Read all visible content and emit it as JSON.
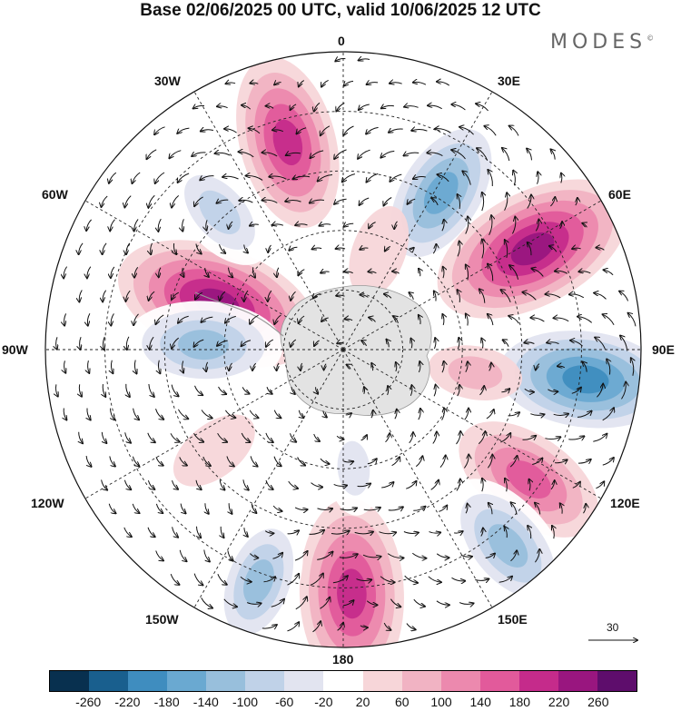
{
  "title": "Base 02/06/2025 00 UTC, valid 10/06/2025 12 UTC",
  "brand": "MODES",
  "brand_mark": "©",
  "longitude_labels": {
    "top": "0",
    "ne": "30E",
    "e60": "60E",
    "right": "90E",
    "e120": "120E",
    "e150": "150E",
    "bottom": "180",
    "w150": "150W",
    "w120": "120W",
    "left": "90W",
    "w60": "60W",
    "w30": "30W"
  },
  "vector_scale_label": "30",
  "colorbar": {
    "colors": [
      "#08304f",
      "#195f8e",
      "#3f8dbf",
      "#6aa9d1",
      "#98bfdc",
      "#c0d2e8",
      "#e2e4f0",
      "#ffffff",
      "#f7d6d9",
      "#f1b3c3",
      "#ec89ae",
      "#e25a9b",
      "#c52b8b",
      "#99167f",
      "#5e0d6c"
    ],
    "ticks": [
      "-260",
      "-220",
      "-180",
      "-140",
      "-100",
      "-60",
      "-20",
      "20",
      "60",
      "100",
      "140",
      "180",
      "220",
      "260"
    ]
  },
  "anomaly_centers": [
    {
      "lon": 345,
      "colat": 0.72,
      "value": 200
    },
    {
      "lon": 32,
      "colat": 0.62,
      "value": -200
    },
    {
      "lon": 62,
      "colat": 0.72,
      "value": 240
    },
    {
      "lon": 97,
      "colat": 0.82,
      "value": -240
    },
    {
      "lon": 125,
      "colat": 0.76,
      "value": 180
    },
    {
      "lon": 140,
      "colat": 0.86,
      "value": -180
    },
    {
      "lon": 178,
      "colat": 0.82,
      "value": 220
    },
    {
      "lon": 200,
      "colat": 0.83,
      "value": -160
    },
    {
      "lon": 290,
      "colat": 0.45,
      "value": 240
    },
    {
      "lon": 272,
      "colat": 0.47,
      "value": -180
    },
    {
      "lon": 318,
      "colat": 0.62,
      "value": -140
    },
    {
      "lon": 232,
      "colat": 0.55,
      "value": 60
    },
    {
      "lon": 175,
      "colat": 0.4,
      "value": -80
    },
    {
      "lon": 100,
      "colat": 0.45,
      "value": 80
    },
    {
      "lon": 20,
      "colat": 0.35,
      "value": 60
    }
  ]
}
